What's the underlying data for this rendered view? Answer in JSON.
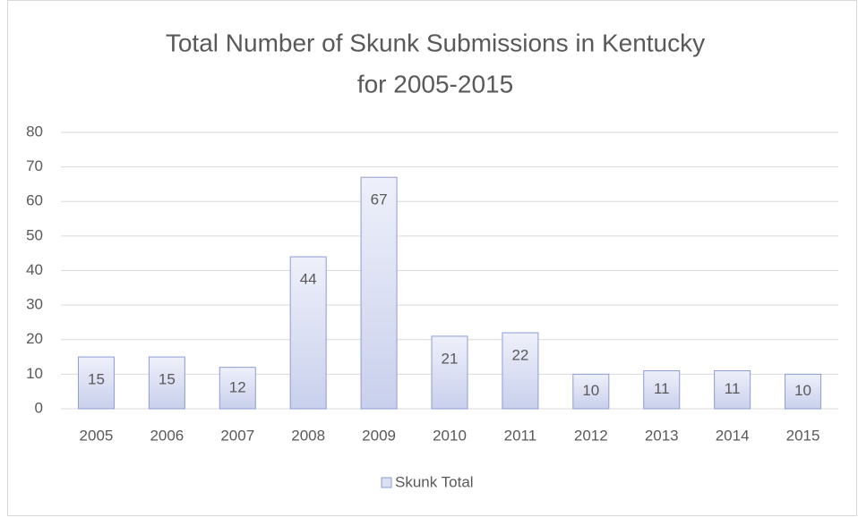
{
  "chart_data": {
    "type": "bar",
    "title": [
      "Total Number of Skunk Submissions in Kentucky",
      "for 2005-2015"
    ],
    "categories": [
      "2005",
      "2006",
      "2007",
      "2008",
      "2009",
      "2010",
      "2011",
      "2012",
      "2013",
      "2014",
      "2015"
    ],
    "series": [
      {
        "name": "Skunk Total",
        "color": "#dadff2",
        "values": [
          15,
          15,
          12,
          44,
          67,
          21,
          22,
          10,
          11,
          11,
          10
        ]
      }
    ],
    "ylim": [
      0,
      80
    ],
    "yticks": [
      0,
      10,
      20,
      30,
      40,
      50,
      60,
      70,
      80
    ],
    "grid": true,
    "legend": "bottom",
    "data_labels": true
  }
}
